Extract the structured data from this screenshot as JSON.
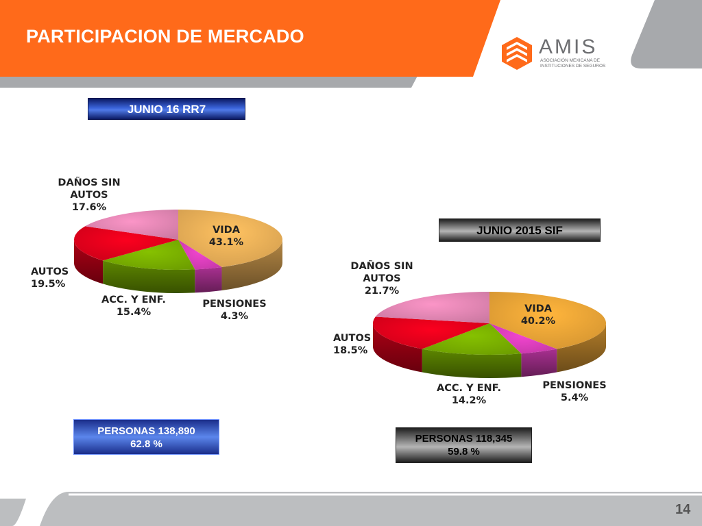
{
  "slide": {
    "title": "PARTICIPACION DE MERCADO",
    "page_number": "14",
    "colors": {
      "orange": "#ff6a1a",
      "gray_band": "#a7a9ac"
    }
  },
  "logo": {
    "name": "AMIS",
    "subtitle_line1": "ASOCIACIÓN MEXICANA DE",
    "subtitle_line2": "INSTITUCIONES DE SEGUROS",
    "icon": "amis-logo-icon"
  },
  "chart_data": [
    {
      "type": "pie",
      "title": "JUNIO 16 RR7",
      "categories": [
        "VIDA",
        "PENSIONES",
        "ACC. Y ENF.",
        "AUTOS",
        "DAÑOS SIN AUTOS"
      ],
      "values": [
        43.1,
        4.3,
        15.4,
        19.5,
        17.6
      ],
      "label_lines": [
        [
          "VIDA"
        ],
        [
          "PENSIONES"
        ],
        [
          "ACC. Y ENF."
        ],
        [
          "AUTOS"
        ],
        [
          "DAÑOS SIN",
          "AUTOS"
        ]
      ],
      "value_labels": [
        "43.1%",
        "4.3%",
        "15.4%",
        "19.5%",
        "17.6%"
      ],
      "colors": [
        "#f0b45a",
        "#e040c0",
        "#7cb300",
        "#e8001c",
        "#e88ab8"
      ],
      "summary": {
        "line1": "PERSONAS  138,890",
        "line2": "62.8 %"
      }
    },
    {
      "type": "pie",
      "title": "JUNIO   2015 SIF",
      "categories": [
        "VIDA",
        "PENSIONES",
        "ACC. Y ENF.",
        "AUTOS",
        "DAÑOS SIN AUTOS"
      ],
      "values": [
        40.2,
        5.4,
        14.2,
        18.5,
        21.7
      ],
      "label_lines": [
        [
          "VIDA"
        ],
        [
          "PENSIONES"
        ],
        [
          "ACC. Y ENF."
        ],
        [
          "AUTOS"
        ],
        [
          "DAÑOS SIN",
          "AUTOS"
        ]
      ],
      "value_labels": [
        "40.2%",
        "5.4%",
        "14.2%",
        "18.5%",
        "21.7%"
      ],
      "colors": [
        "#f0a838",
        "#e040c0",
        "#7cb300",
        "#e8001c",
        "#e88ab8"
      ],
      "summary": {
        "line1": "PERSONAS  118,345",
        "line2": "59.8 %"
      }
    }
  ]
}
